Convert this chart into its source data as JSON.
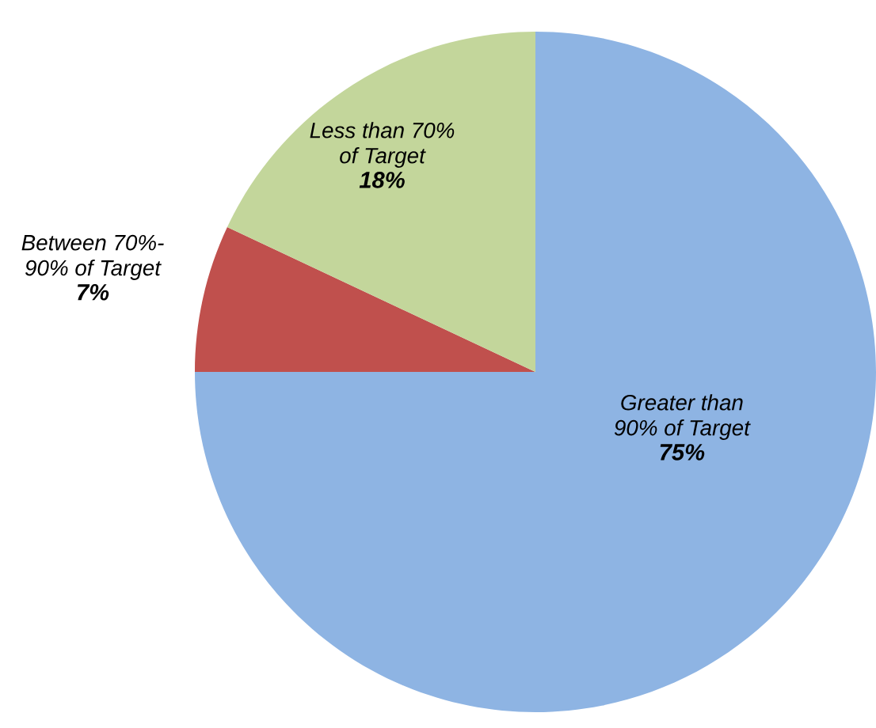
{
  "chart_data": {
    "type": "pie",
    "categories": [
      "Greater than\n90% of Target",
      "Between 70%-\n90% of Target",
      "Less than 70%\nof Target"
    ],
    "values": [
      75,
      7,
      18
    ],
    "value_labels": [
      "75%",
      "7%",
      "18%"
    ],
    "colors": [
      "#8eb4e3",
      "#c0504d",
      "#c3d69b"
    ]
  }
}
